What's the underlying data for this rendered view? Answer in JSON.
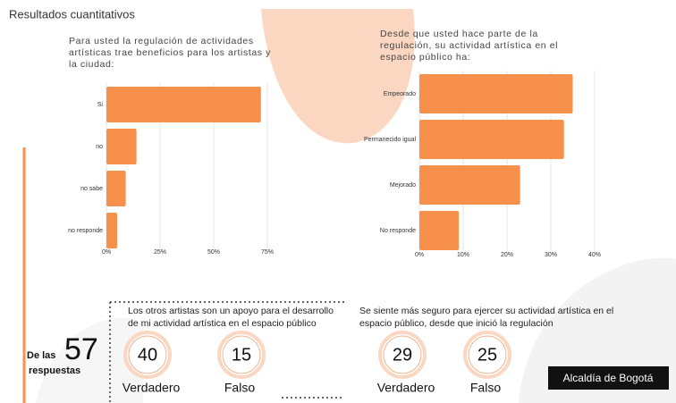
{
  "title": "Resultados cuantitativos",
  "chart_data": [
    {
      "type": "hbar",
      "title": "Para usted la regulación de actividades artísticas trae beneficios para los artistas y la ciudad:",
      "categories": [
        "Si",
        "no",
        "no sabe",
        "no responde"
      ],
      "values": [
        72,
        14,
        9,
        5
      ],
      "color": "#f7904b",
      "xlim": [
        0,
        75
      ],
      "xticks": [
        {
          "value": 0,
          "label": "0%"
        },
        {
          "value": 25,
          "label": "25%"
        },
        {
          "value": 50,
          "label": "50%"
        },
        {
          "value": 75,
          "label": "75%"
        }
      ],
      "grid": true
    },
    {
      "type": "hbar",
      "title": "Desde que usted hace parte de la regulación, su actividad artística en el espacio público ha:",
      "categories": [
        "Empeorado",
        "Permanecido igual",
        "Mejorado",
        "No responde"
      ],
      "values": [
        35,
        33,
        23,
        9
      ],
      "color": "#f7904b",
      "xlim": [
        0,
        40
      ],
      "xticks": [
        {
          "value": 0,
          "label": "0%"
        },
        {
          "value": 10,
          "label": "10%"
        },
        {
          "value": 20,
          "label": "20%"
        },
        {
          "value": 30,
          "label": "30%"
        },
        {
          "value": 40,
          "label": "40%"
        }
      ],
      "grid": true
    }
  ],
  "summary": {
    "prefix": "De las",
    "total": "57",
    "suffix": "respuestas"
  },
  "questions": [
    {
      "text": "Los otros artistas son un apoyo para el desarrollo de mi actividad artística en el espacio público",
      "true_count": "40",
      "true_label": "Verdadero",
      "false_count": "15",
      "false_label": "Falso"
    },
    {
      "text": "Se siente más seguro para ejercer su actividad artística en el espacio público, desde que inició la regulación",
      "true_count": "29",
      "true_label": "Verdadero",
      "false_count": "25",
      "false_label": "Falso"
    }
  ],
  "logo": "Alcaldía de Bogotá"
}
